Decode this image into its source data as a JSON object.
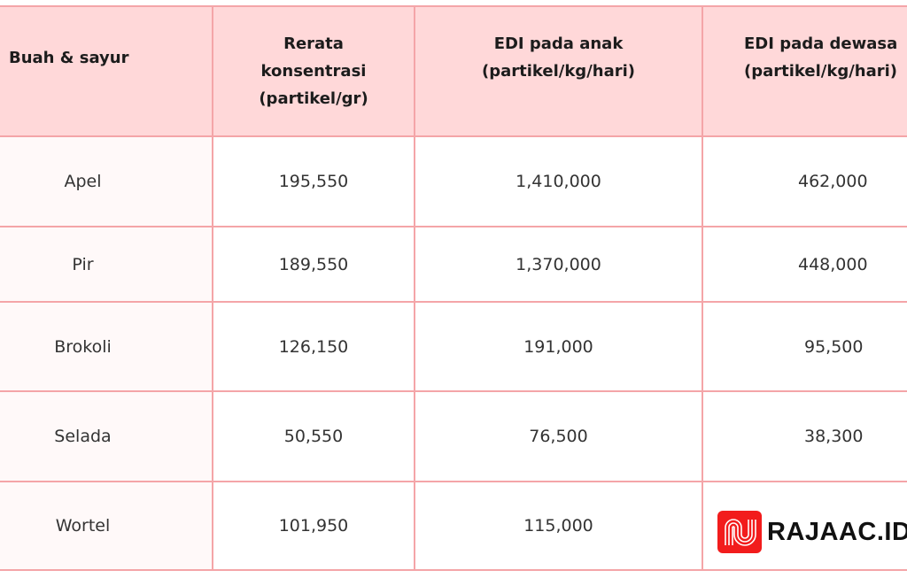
{
  "table": {
    "headers": [
      [
        "Buah & sayur"
      ],
      [
        "Rerata",
        "konsentrasi",
        "(partikel/gr)"
      ],
      [
        "EDI pada anak",
        "(partikel/kg/hari)"
      ],
      [
        "EDI pada dewasa",
        "(partikel/kg/hari)"
      ]
    ],
    "rows": [
      {
        "name": "Apel",
        "konsentrasi": "195,550",
        "anak": "1,410,000",
        "dewasa": "462,000"
      },
      {
        "name": "Pir",
        "konsentrasi": "189,550",
        "anak": "1,370,000",
        "dewasa": "448,000"
      },
      {
        "name": "Brokoli",
        "konsentrasi": "126,150",
        "anak": "191,000",
        "dewasa": "95,500"
      },
      {
        "name": "Selada",
        "konsentrasi": "50,550",
        "anak": "76,500",
        "dewasa": "38,300"
      },
      {
        "name": "Wortel",
        "konsentrasi": "101,950",
        "anak": "115,000",
        "dewasa": ""
      }
    ]
  },
  "logo": {
    "text": "RAJAAC.ID",
    "color": "#f21c1c"
  },
  "colors": {
    "header_bg": "#ffd8d9",
    "border": "#f4a5a8"
  }
}
